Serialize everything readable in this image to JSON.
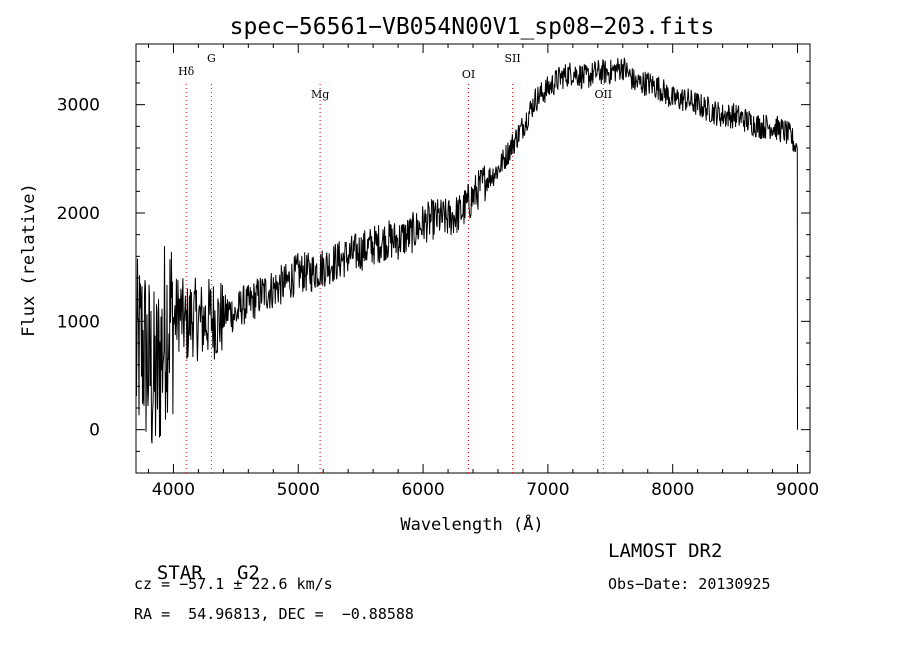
{
  "chart_data": {
    "type": "line",
    "title": "spec−56561−VB054N00V1_sp08−203.fits",
    "xlabel": "Wavelength (Å)",
    "ylabel": "Flux (relative)",
    "xlim": [
      3700,
      9100
    ],
    "ylim": [
      -400,
      3560
    ],
    "x_ticks": [
      4000,
      5000,
      6000,
      7000,
      8000,
      9000
    ],
    "y_ticks": [
      0,
      1000,
      2000,
      3000
    ],
    "x_tick_labels": [
      "4000",
      "5000",
      "6000",
      "7000",
      "8000",
      "9000"
    ],
    "y_tick_labels": [
      "0",
      "1000",
      "2000",
      "3000"
    ],
    "grid": false,
    "legend": "none",
    "line_color": "#000000",
    "marker_color": "#ff0000",
    "series": [
      {
        "x": [
          3700,
          3750,
          3800,
          3850,
          3900,
          3950,
          4000,
          4050,
          4100,
          4150,
          4200,
          4250,
          4300,
          4350,
          4400,
          4450,
          4500,
          4550,
          4600,
          4700,
          4800,
          4900,
          5000,
          5100,
          5200,
          5300,
          5400,
          5500,
          5600,
          5700,
          5800,
          5900,
          6000,
          6100,
          6200,
          6300,
          6400,
          6500,
          6600,
          6700,
          6800,
          6900,
          7000,
          7100,
          7200,
          7300,
          7400,
          7500,
          7600,
          7700,
          7800,
          7900,
          8000,
          8100,
          8200,
          8300,
          8400,
          8500,
          8600,
          8700,
          8800,
          8900,
          8950,
          8990,
          9000
        ],
        "y": [
          650,
          800,
          600,
          400,
          700,
          1050,
          1000,
          1100,
          950,
          1050,
          1000,
          1000,
          1050,
          1000,
          1050,
          1100,
          1050,
          1150,
          1150,
          1250,
          1300,
          1350,
          1450,
          1450,
          1500,
          1550,
          1600,
          1650,
          1700,
          1750,
          1750,
          1800,
          1900,
          1950,
          1950,
          2000,
          2150,
          2300,
          2400,
          2600,
          2800,
          3050,
          3150,
          3250,
          3300,
          3250,
          3300,
          3300,
          3350,
          3200,
          3200,
          3150,
          3050,
          3050,
          3000,
          2950,
          2900,
          2900,
          2850,
          2800,
          2800,
          2750,
          2700,
          2600,
          0
        ]
      }
    ],
    "spectral_lines": [
      {
        "name": "Hδ",
        "wavelength": 4102
      },
      {
        "name": "G",
        "wavelength": 4304
      },
      {
        "name": "Mg",
        "wavelength": 5175
      },
      {
        "name": "OI",
        "wavelength": 6364
      },
      {
        "name": "SII",
        "wavelength": 6717
      },
      {
        "name": "OII",
        "wavelength": 7444
      }
    ]
  },
  "info": {
    "object_class": "STAR",
    "subclass": "G2",
    "survey": "LAMOST DR2",
    "redshift": "cz = −57.1 ± 22.6 km/s",
    "obs_date": "Obs−Date: 20130925",
    "coords": "RA =  54.96813, DEC =  −0.88588"
  }
}
